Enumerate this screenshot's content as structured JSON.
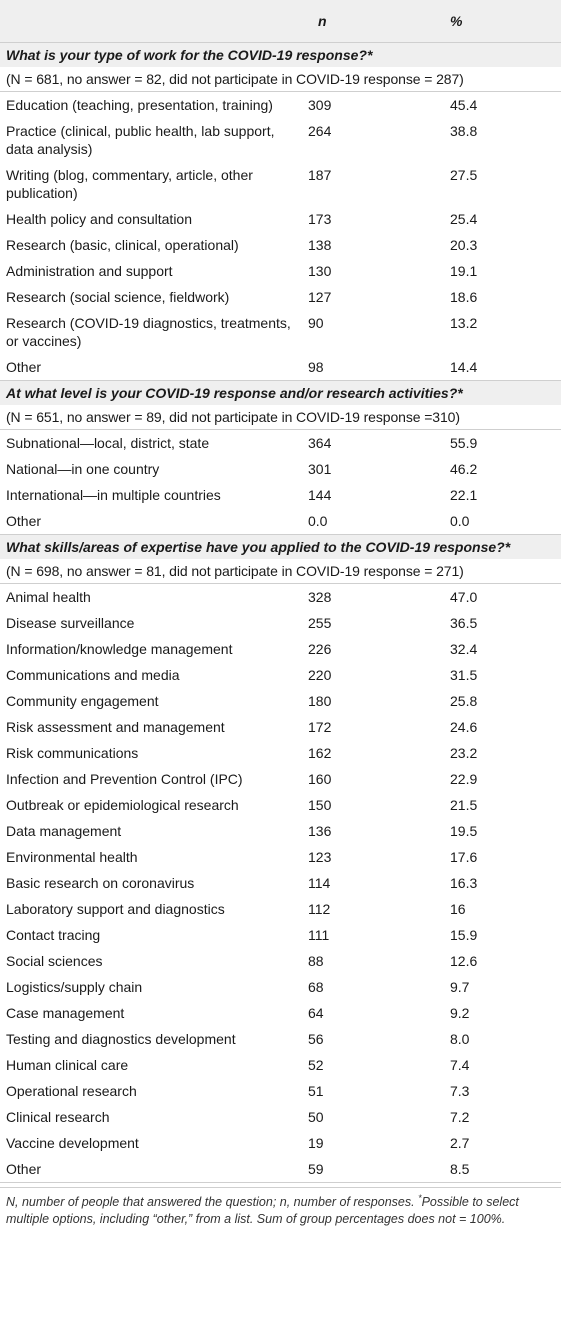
{
  "header": {
    "col_label": "",
    "col_n": "n",
    "col_pct": "%"
  },
  "sections": [
    {
      "question": "What is your type of work for the COVID-19 response?*",
      "n_note": "(N = 681, no answer = 82, did not participate in COVID-19 response = 287)",
      "rows": [
        {
          "label": "Education (teaching, presentation, training)",
          "n": "309",
          "pct": "45.4"
        },
        {
          "label": "Practice (clinical, public health, lab support, data analysis)",
          "n": "264",
          "pct": "38.8"
        },
        {
          "label": "Writing (blog, commentary, article, other publication)",
          "n": "187",
          "pct": "27.5"
        },
        {
          "label": "Health policy and consultation",
          "n": "173",
          "pct": "25.4"
        },
        {
          "label": "Research (basic, clinical, operational)",
          "n": "138",
          "pct": "20.3"
        },
        {
          "label": "Administration and support",
          "n": "130",
          "pct": "19.1"
        },
        {
          "label": "Research (social science, fieldwork)",
          "n": "127",
          "pct": "18.6"
        },
        {
          "label": "Research (COVID-19 diagnostics, treatments, or vaccines)",
          "n": "90",
          "pct": "13.2"
        },
        {
          "label": "Other",
          "n": "98",
          "pct": "14.4"
        }
      ]
    },
    {
      "question": "At what level is your COVID-19 response and/or research activities?*",
      "n_note": "(N = 651, no answer = 89, did not participate in COVID-19 response =310)",
      "rows": [
        {
          "label": "Subnational—local, district, state",
          "n": "364",
          "pct": "55.9"
        },
        {
          "label": "National—in one country",
          "n": "301",
          "pct": "46.2"
        },
        {
          "label": "International—in multiple countries",
          "n": "144",
          "pct": "22.1"
        },
        {
          "label": "Other",
          "n": "0.0",
          "pct": "0.0"
        }
      ]
    },
    {
      "question": "What skills/areas of expertise have you applied to the COVID-19 response?*",
      "n_note": "(N = 698, no answer = 81, did not participate in COVID-19 response = 271)",
      "rows": [
        {
          "label": "Animal health",
          "n": "328",
          "pct": "47.0"
        },
        {
          "label": "Disease surveillance",
          "n": "255",
          "pct": "36.5"
        },
        {
          "label": "Information/knowledge management",
          "n": "226",
          "pct": "32.4"
        },
        {
          "label": "Communications and media",
          "n": "220",
          "pct": "31.5"
        },
        {
          "label": "Community engagement",
          "n": "180",
          "pct": "25.8"
        },
        {
          "label": "Risk assessment and management",
          "n": "172",
          "pct": "24.6"
        },
        {
          "label": "Risk communications",
          "n": "162",
          "pct": "23.2"
        },
        {
          "label": "Infection and Prevention Control (IPC)",
          "n": "160",
          "pct": "22.9"
        },
        {
          "label": "Outbreak or epidemiological research",
          "n": "150",
          "pct": "21.5"
        },
        {
          "label": "Data management",
          "n": "136",
          "pct": "19.5"
        },
        {
          "label": "Environmental health",
          "n": "123",
          "pct": "17.6"
        },
        {
          "label": "Basic research on coronavirus",
          "n": "114",
          "pct": "16.3"
        },
        {
          "label": "Laboratory support and diagnostics",
          "n": "112",
          "pct": "16"
        },
        {
          "label": "Contact tracing",
          "n": "111",
          "pct": "15.9"
        },
        {
          "label": "Social sciences",
          "n": "88",
          "pct": "12.6"
        },
        {
          "label": "Logistics/supply chain",
          "n": "68",
          "pct": "9.7"
        },
        {
          "label": "Case management",
          "n": "64",
          "pct": "9.2"
        },
        {
          "label": "Testing and diagnostics development",
          "n": "56",
          "pct": "8.0"
        },
        {
          "label": "Human clinical care",
          "n": "52",
          "pct": "7.4"
        },
        {
          "label": "Operational research",
          "n": "51",
          "pct": "7.3"
        },
        {
          "label": "Clinical research",
          "n": "50",
          "pct": "7.2"
        },
        {
          "label": "Vaccine development",
          "n": "19",
          "pct": "2.7"
        },
        {
          "label": "Other",
          "n": "59",
          "pct": "8.5"
        }
      ]
    }
  ],
  "footnote": {
    "text_a": "N, number of people that answered the question; n, number of responses.",
    "sup": "*",
    "text_b": "Possible to select multiple options, including “other,” from a list. Sum of group percentages does not = 100%."
  },
  "colors": {
    "shade": "#efefef",
    "rule": "#cfcfcf",
    "text": "#1a1a1a"
  }
}
